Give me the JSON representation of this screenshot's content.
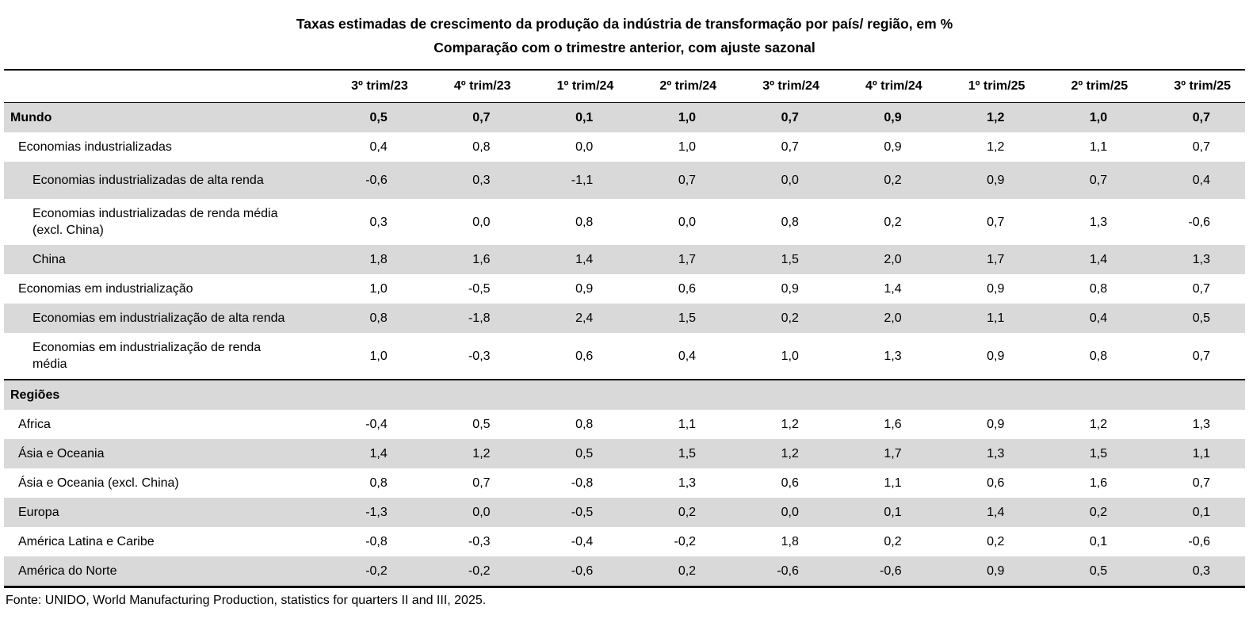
{
  "title": {
    "line1": "Taxas estimadas de crescimento da produção da indústria de transformação por país/ região, em %",
    "line2": "Comparação com o trimestre anterior, com ajuste sazonal"
  },
  "table": {
    "columns": [
      "3º trim/23",
      "4º trim/23",
      "1º trim/24",
      "2º trim/24",
      "3º trim/24",
      "4º trim/24",
      "1º trim/25",
      "2º trim/25",
      "3º trim/25"
    ],
    "rows": [
      {
        "label": "Mundo",
        "level": 0,
        "bold": true,
        "shade": true,
        "section": false,
        "values": [
          "0,5",
          "0,7",
          "0,1",
          "1,0",
          "0,7",
          "0,9",
          "1,2",
          "1,0",
          "0,7"
        ]
      },
      {
        "label": "Economias industrializadas",
        "level": 1,
        "bold": false,
        "shade": false,
        "section": false,
        "values": [
          "0,4",
          "0,8",
          "0,0",
          "1,0",
          "0,7",
          "0,9",
          "1,2",
          "1,1",
          "0,7"
        ]
      },
      {
        "label": "Economias industrializadas de alta renda",
        "level": 2,
        "bold": false,
        "shade": true,
        "section": false,
        "tall": true,
        "values": [
          "-0,6",
          "0,3",
          "-1,1",
          "0,7",
          "0,0",
          "0,2",
          "0,9",
          "0,7",
          "0,4"
        ]
      },
      {
        "label": "Economias industrializadas de renda média (excl. China)",
        "level": 2,
        "bold": false,
        "shade": false,
        "section": false,
        "values": [
          "0,3",
          "0,0",
          "0,8",
          "0,0",
          "0,8",
          "0,2",
          "0,7",
          "1,3",
          "-0,6"
        ]
      },
      {
        "label": "China",
        "level": 2,
        "bold": false,
        "shade": true,
        "section": false,
        "values": [
          "1,8",
          "1,6",
          "1,4",
          "1,7",
          "1,5",
          "2,0",
          "1,7",
          "1,4",
          "1,3"
        ]
      },
      {
        "label": "Economias em industrialização",
        "level": 1,
        "bold": false,
        "shade": false,
        "section": false,
        "values": [
          "1,0",
          "-0,5",
          "0,9",
          "0,6",
          "0,9",
          "1,4",
          "0,9",
          "0,8",
          "0,7"
        ]
      },
      {
        "label": "Economias em industrialização de alta renda",
        "level": 2,
        "bold": false,
        "shade": true,
        "section": false,
        "values": [
          "0,8",
          "-1,8",
          "2,4",
          "1,5",
          "0,2",
          "2,0",
          "1,1",
          "0,4",
          "0,5"
        ]
      },
      {
        "label": "Economias em industrialização de renda média",
        "level": 2,
        "bold": false,
        "shade": false,
        "section": false,
        "values": [
          "1,0",
          "-0,3",
          "0,6",
          "0,4",
          "1,0",
          "1,3",
          "0,9",
          "0,8",
          "0,7"
        ]
      },
      {
        "label": "Regiões",
        "level": 0,
        "bold": true,
        "shade": true,
        "section": true,
        "values": []
      },
      {
        "label": "Africa",
        "level": 1,
        "bold": false,
        "shade": false,
        "section": false,
        "values": [
          "-0,4",
          "0,5",
          "0,8",
          "1,1",
          "1,2",
          "1,6",
          "0,9",
          "1,2",
          "1,3"
        ]
      },
      {
        "label": "Ásia e Oceania",
        "level": 1,
        "bold": false,
        "shade": true,
        "section": false,
        "values": [
          "1,4",
          "1,2",
          "0,5",
          "1,5",
          "1,2",
          "1,7",
          "1,3",
          "1,5",
          "1,1"
        ]
      },
      {
        "label": "Ásia e Oceania (excl. China)",
        "level": 1,
        "bold": false,
        "shade": false,
        "section": false,
        "values": [
          "0,8",
          "0,7",
          "-0,8",
          "1,3",
          "0,6",
          "1,1",
          "0,6",
          "1,6",
          "0,7"
        ]
      },
      {
        "label": "Europa",
        "level": 1,
        "bold": false,
        "shade": true,
        "section": false,
        "values": [
          "-1,3",
          "0,0",
          "-0,5",
          "0,2",
          "0,0",
          "0,1",
          "1,4",
          "0,2",
          "0,1"
        ]
      },
      {
        "label": "América Latina e Caribe",
        "level": 1,
        "bold": false,
        "shade": false,
        "section": false,
        "values": [
          "-0,8",
          "-0,3",
          "-0,4",
          "-0,2",
          "1,8",
          "0,2",
          "0,2",
          "0,1",
          "-0,6"
        ]
      },
      {
        "label": "América do Norte",
        "level": 1,
        "bold": false,
        "shade": true,
        "section": false,
        "values": [
          "-0,2",
          "-0,2",
          "-0,6",
          "0,2",
          "-0,6",
          "-0,6",
          "0,9",
          "0,5",
          "0,3"
        ]
      }
    ]
  },
  "footer": {
    "source": "Fonte: UNIDO, World Manufacturing Production, statistics for quarters II and III, 2025."
  },
  "colors": {
    "stripe": "#d9d9d9",
    "text": "#000000",
    "background": "#ffffff",
    "rule": "#000000"
  }
}
